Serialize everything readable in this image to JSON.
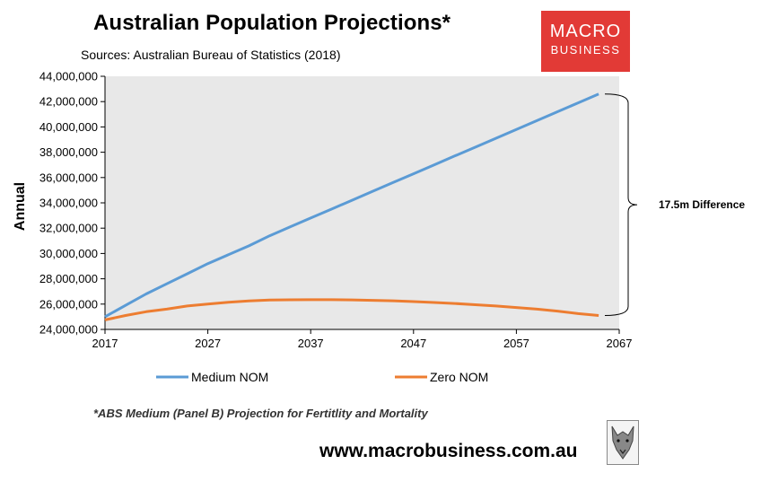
{
  "header": {
    "title": "Australian Population Projections*",
    "subtitle": "Sources: Australian Bureau of Statistics (2018)"
  },
  "logo": {
    "line1": "MACRO",
    "line2": "BUSINESS",
    "color": "#e23a36"
  },
  "footnote": "*ABS Medium (Panel B) Projection for Fertitlity and Mortality",
  "footer_url": "www.macrobusiness.com.au",
  "wolf_icon": "wolf-head-icon",
  "chart_data": {
    "type": "line",
    "ylabel": "Annual",
    "xlim": [
      2017,
      2067
    ],
    "ylim": [
      24000000,
      44000000
    ],
    "x_ticks": [
      2017,
      2027,
      2037,
      2047,
      2057,
      2067
    ],
    "y_ticks": [
      24000000,
      26000000,
      28000000,
      30000000,
      32000000,
      34000000,
      36000000,
      38000000,
      40000000,
      42000000,
      44000000
    ],
    "y_tick_labels": [
      "24,000,000",
      "26,000,000",
      "28,000,000",
      "30,000,000",
      "32,000,000",
      "34,000,000",
      "36,000,000",
      "38,000,000",
      "40,000,000",
      "42,000,000",
      "44,000,000"
    ],
    "x_tick_labels": [
      "2017",
      "2027",
      "2037",
      "2047",
      "2057",
      "2067"
    ],
    "plot_background": "#e8e8e8",
    "legend_position": "bottom",
    "annotation": "17.5m Difference",
    "x": [
      2017,
      2019,
      2021,
      2023,
      2025,
      2027,
      2029,
      2031,
      2033,
      2035,
      2037,
      2039,
      2041,
      2043,
      2045,
      2047,
      2049,
      2051,
      2053,
      2055,
      2057,
      2059,
      2061,
      2063,
      2065
    ],
    "series": [
      {
        "name": "Medium NOM",
        "color": "#5b9bd5",
        "values": [
          25000000,
          25900000,
          26800000,
          27600000,
          28400000,
          29200000,
          29900000,
          30600000,
          31400000,
          32100000,
          32800000,
          33500000,
          34200000,
          34900000,
          35600000,
          36300000,
          37000000,
          37700000,
          38400000,
          39100000,
          39800000,
          40500000,
          41200000,
          41900000,
          42600000
        ]
      },
      {
        "name": "Zero NOM",
        "color": "#ed7d31",
        "values": [
          24750000,
          25100000,
          25400000,
          25600000,
          25850000,
          26000000,
          26150000,
          26250000,
          26320000,
          26340000,
          26350000,
          26350000,
          26330000,
          26300000,
          26260000,
          26200000,
          26130000,
          26050000,
          25950000,
          25850000,
          25730000,
          25600000,
          25450000,
          25250000,
          25100000
        ]
      }
    ]
  }
}
